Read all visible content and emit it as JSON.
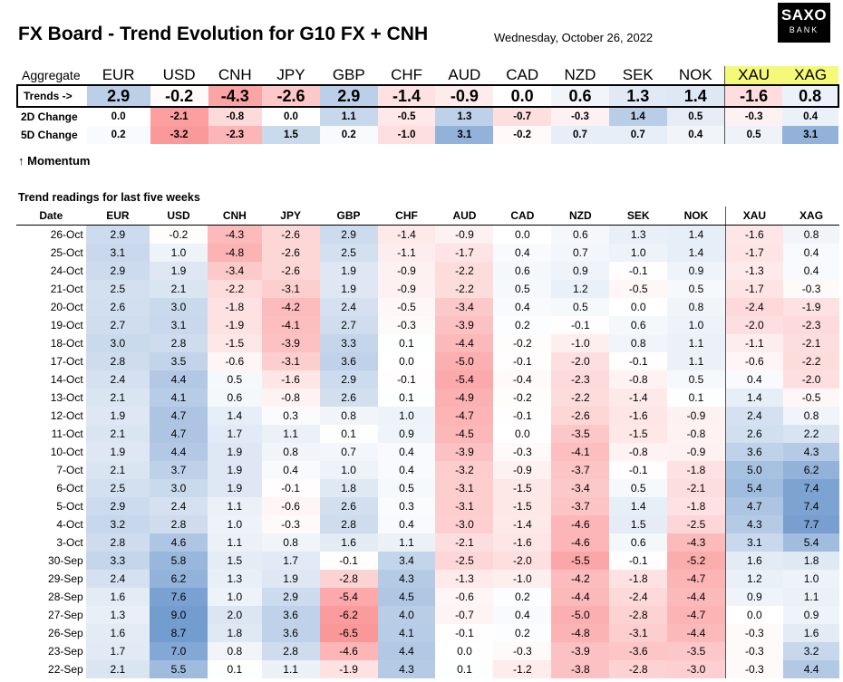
{
  "title": "FX Board - Trend Evolution for G10 FX + CNH",
  "date": "Wednesday, October 26, 2022",
  "logo": {
    "line1": "SAXO",
    "line2": "BANK"
  },
  "currencies": [
    "EUR",
    "USD",
    "CNH",
    "JPY",
    "GBP",
    "CHF",
    "AUD",
    "CAD",
    "NZD",
    "SEK",
    "NOK",
    "XAU",
    "XAG"
  ],
  "aggregate_label": "Aggregate",
  "trends_label": "Trends ->",
  "trends": [
    "2.9",
    "-0.2",
    "-4.3",
    "-2.6",
    "2.9",
    "-1.4",
    "-0.9",
    "0.0",
    "0.6",
    "1.3",
    "1.4",
    "-1.6",
    "0.8"
  ],
  "change_2d_label": "2D Change",
  "change_2d": [
    "0.0",
    "-2.1",
    "-0.8",
    "0.0",
    "1.1",
    "-0.5",
    "1.3",
    "-0.7",
    "-0.3",
    "1.4",
    "0.5",
    "-0.3",
    "0.4"
  ],
  "change_5d_label": "5D Change",
  "change_5d": [
    "0.2",
    "-3.2",
    "-2.3",
    "1.5",
    "0.2",
    "-1.0",
    "3.1",
    "-0.2",
    "0.7",
    "0.7",
    "0.4",
    "0.5",
    "3.1"
  ],
  "momentum_label": "↑ Momentum",
  "readings_label": "Trend readings for last five weeks",
  "date_header": "Date",
  "rows": [
    {
      "date": "26-Oct",
      "v": [
        "2.9",
        "-0.2",
        "-4.3",
        "-2.6",
        "2.9",
        "-1.4",
        "-0.9",
        "0.0",
        "0.6",
        "1.3",
        "1.4",
        "-1.6",
        "0.8"
      ]
    },
    {
      "date": "25-Oct",
      "v": [
        "3.1",
        "1.0",
        "-4.8",
        "-2.6",
        "2.5",
        "-1.1",
        "-1.7",
        "0.4",
        "0.7",
        "1.0",
        "1.4",
        "-1.7",
        "0.4"
      ]
    },
    {
      "date": "24-Oct",
      "v": [
        "2.9",
        "1.9",
        "-3.4",
        "-2.6",
        "1.9",
        "-0.9",
        "-2.2",
        "0.6",
        "0.9",
        "-0.1",
        "0.9",
        "-1.3",
        "0.4"
      ]
    },
    {
      "date": "21-Oct",
      "v": [
        "2.5",
        "2.1",
        "-2.2",
        "-3.1",
        "1.9",
        "-0.9",
        "-2.2",
        "0.5",
        "1.2",
        "-0.5",
        "0.5",
        "-1.7",
        "-0.3"
      ]
    },
    {
      "date": "20-Oct",
      "v": [
        "2.6",
        "3.0",
        "-1.8",
        "-4.2",
        "2.4",
        "-0.5",
        "-3.4",
        "0.4",
        "0.5",
        "0.0",
        "0.8",
        "-2.4",
        "-1.9"
      ]
    },
    {
      "date": "19-Oct",
      "v": [
        "2.7",
        "3.1",
        "-1.9",
        "-4.1",
        "2.7",
        "-0.3",
        "-3.9",
        "0.2",
        "-0.1",
        "0.6",
        "1.0",
        "-2.0",
        "-2.3"
      ]
    },
    {
      "date": "18-Oct",
      "v": [
        "3.0",
        "2.8",
        "-1.5",
        "-3.9",
        "3.3",
        "0.1",
        "-4.4",
        "-0.2",
        "-1.0",
        "0.8",
        "1.1",
        "-1.1",
        "-2.1"
      ]
    },
    {
      "date": "17-Oct",
      "v": [
        "2.8",
        "3.5",
        "-0.6",
        "-3.1",
        "3.6",
        "0.0",
        "-5.0",
        "-0.1",
        "-2.0",
        "-0.1",
        "1.1",
        "-0.6",
        "-2.2"
      ]
    },
    {
      "date": "14-Oct",
      "v": [
        "2.4",
        "4.4",
        "0.5",
        "-1.6",
        "2.9",
        "-0.1",
        "-5.4",
        "-0.4",
        "-2.3",
        "-0.8",
        "0.5",
        "0.4",
        "-2.0"
      ]
    },
    {
      "date": "13-Oct",
      "v": [
        "2.1",
        "4.1",
        "0.6",
        "-0.8",
        "2.6",
        "0.1",
        "-4.9",
        "-0.2",
        "-2.2",
        "-1.4",
        "0.1",
        "1.4",
        "-0.5"
      ]
    },
    {
      "date": "12-Oct",
      "v": [
        "1.9",
        "4.7",
        "1.4",
        "0.3",
        "0.8",
        "1.0",
        "-4.7",
        "-0.1",
        "-2.6",
        "-1.6",
        "-0.9",
        "2.4",
        "0.8"
      ]
    },
    {
      "date": "11-Oct",
      "v": [
        "2.1",
        "4.7",
        "1.7",
        "1.1",
        "0.1",
        "0.9",
        "-4.5",
        "0.0",
        "-3.5",
        "-1.5",
        "-0.8",
        "2.6",
        "2.2"
      ]
    },
    {
      "date": "10-Oct",
      "v": [
        "1.9",
        "4.4",
        "1.9",
        "0.8",
        "0.7",
        "0.4",
        "-3.9",
        "-0.3",
        "-4.1",
        "-0.8",
        "-0.9",
        "3.6",
        "4.3"
      ]
    },
    {
      "date": "7-Oct",
      "v": [
        "2.1",
        "3.7",
        "1.9",
        "0.4",
        "1.0",
        "0.4",
        "-3.2",
        "-0.9",
        "-3.7",
        "-0.1",
        "-1.8",
        "5.0",
        "6.2"
      ]
    },
    {
      "date": "6-Oct",
      "v": [
        "2.5",
        "3.0",
        "1.9",
        "-0.1",
        "1.8",
        "0.5",
        "-3.1",
        "-1.5",
        "-3.4",
        "0.5",
        "-2.1",
        "5.4",
        "7.4"
      ]
    },
    {
      "date": "5-Oct",
      "v": [
        "2.9",
        "2.4",
        "1.1",
        "-0.6",
        "2.6",
        "0.3",
        "-3.1",
        "-1.5",
        "-3.7",
        "1.4",
        "-1.8",
        "4.7",
        "7.4"
      ]
    },
    {
      "date": "4-Oct",
      "v": [
        "3.2",
        "2.8",
        "1.0",
        "-0.3",
        "2.8",
        "0.4",
        "-3.0",
        "-1.4",
        "-4.6",
        "1.5",
        "-2.5",
        "4.3",
        "7.7"
      ]
    },
    {
      "date": "3-Oct",
      "v": [
        "2.8",
        "4.6",
        "1.1",
        "0.8",
        "1.6",
        "1.1",
        "-2.1",
        "-1.6",
        "-4.6",
        "0.6",
        "-4.3",
        "3.1",
        "5.4"
      ]
    },
    {
      "date": "30-Sep",
      "v": [
        "3.3",
        "5.8",
        "1.5",
        "1.7",
        "-0.1",
        "3.4",
        "-2.5",
        "-2.0",
        "-5.5",
        "-0.1",
        "-5.2",
        "1.6",
        "1.8"
      ]
    },
    {
      "date": "29-Sep",
      "v": [
        "2.4",
        "6.2",
        "1.3",
        "1.9",
        "-2.8",
        "4.3",
        "-1.3",
        "-1.0",
        "-4.2",
        "-1.8",
        "-4.7",
        "1.2",
        "1.0"
      ]
    },
    {
      "date": "28-Sep",
      "v": [
        "1.6",
        "7.6",
        "1.0",
        "2.9",
        "-5.4",
        "4.5",
        "-0.6",
        "0.2",
        "-4.4",
        "-2.4",
        "-4.4",
        "0.9",
        "1.1"
      ]
    },
    {
      "date": "27-Sep",
      "v": [
        "1.3",
        "9.0",
        "2.0",
        "3.6",
        "-6.2",
        "4.0",
        "-0.7",
        "0.4",
        "-5.0",
        "-2.8",
        "-4.7",
        "0.0",
        "0.9"
      ]
    },
    {
      "date": "26-Sep",
      "v": [
        "1.6",
        "8.7",
        "1.8",
        "3.6",
        "-6.5",
        "4.1",
        "-0.1",
        "0.2",
        "-4.8",
        "-3.1",
        "-4.4",
        "-0.3",
        "1.6"
      ]
    },
    {
      "date": "23-Sep",
      "v": [
        "1.7",
        "7.0",
        "0.8",
        "2.8",
        "-4.6",
        "4.4",
        "0.0",
        "-0.3",
        "-3.9",
        "-3.6",
        "-3.5",
        "-0.3",
        "3.2"
      ]
    },
    {
      "date": "22-Sep",
      "v": [
        "2.1",
        "5.5",
        "0.1",
        "1.1",
        "-1.9",
        "4.3",
        "0.1",
        "-1.2",
        "-3.8",
        "-2.8",
        "-3.0",
        "-0.3",
        "4.4"
      ]
    }
  ],
  "colors": {
    "positive": "#5a8ac6",
    "negative": "#f8696b",
    "neutral": "#ffffff",
    "highlight": "#f5f97a"
  }
}
